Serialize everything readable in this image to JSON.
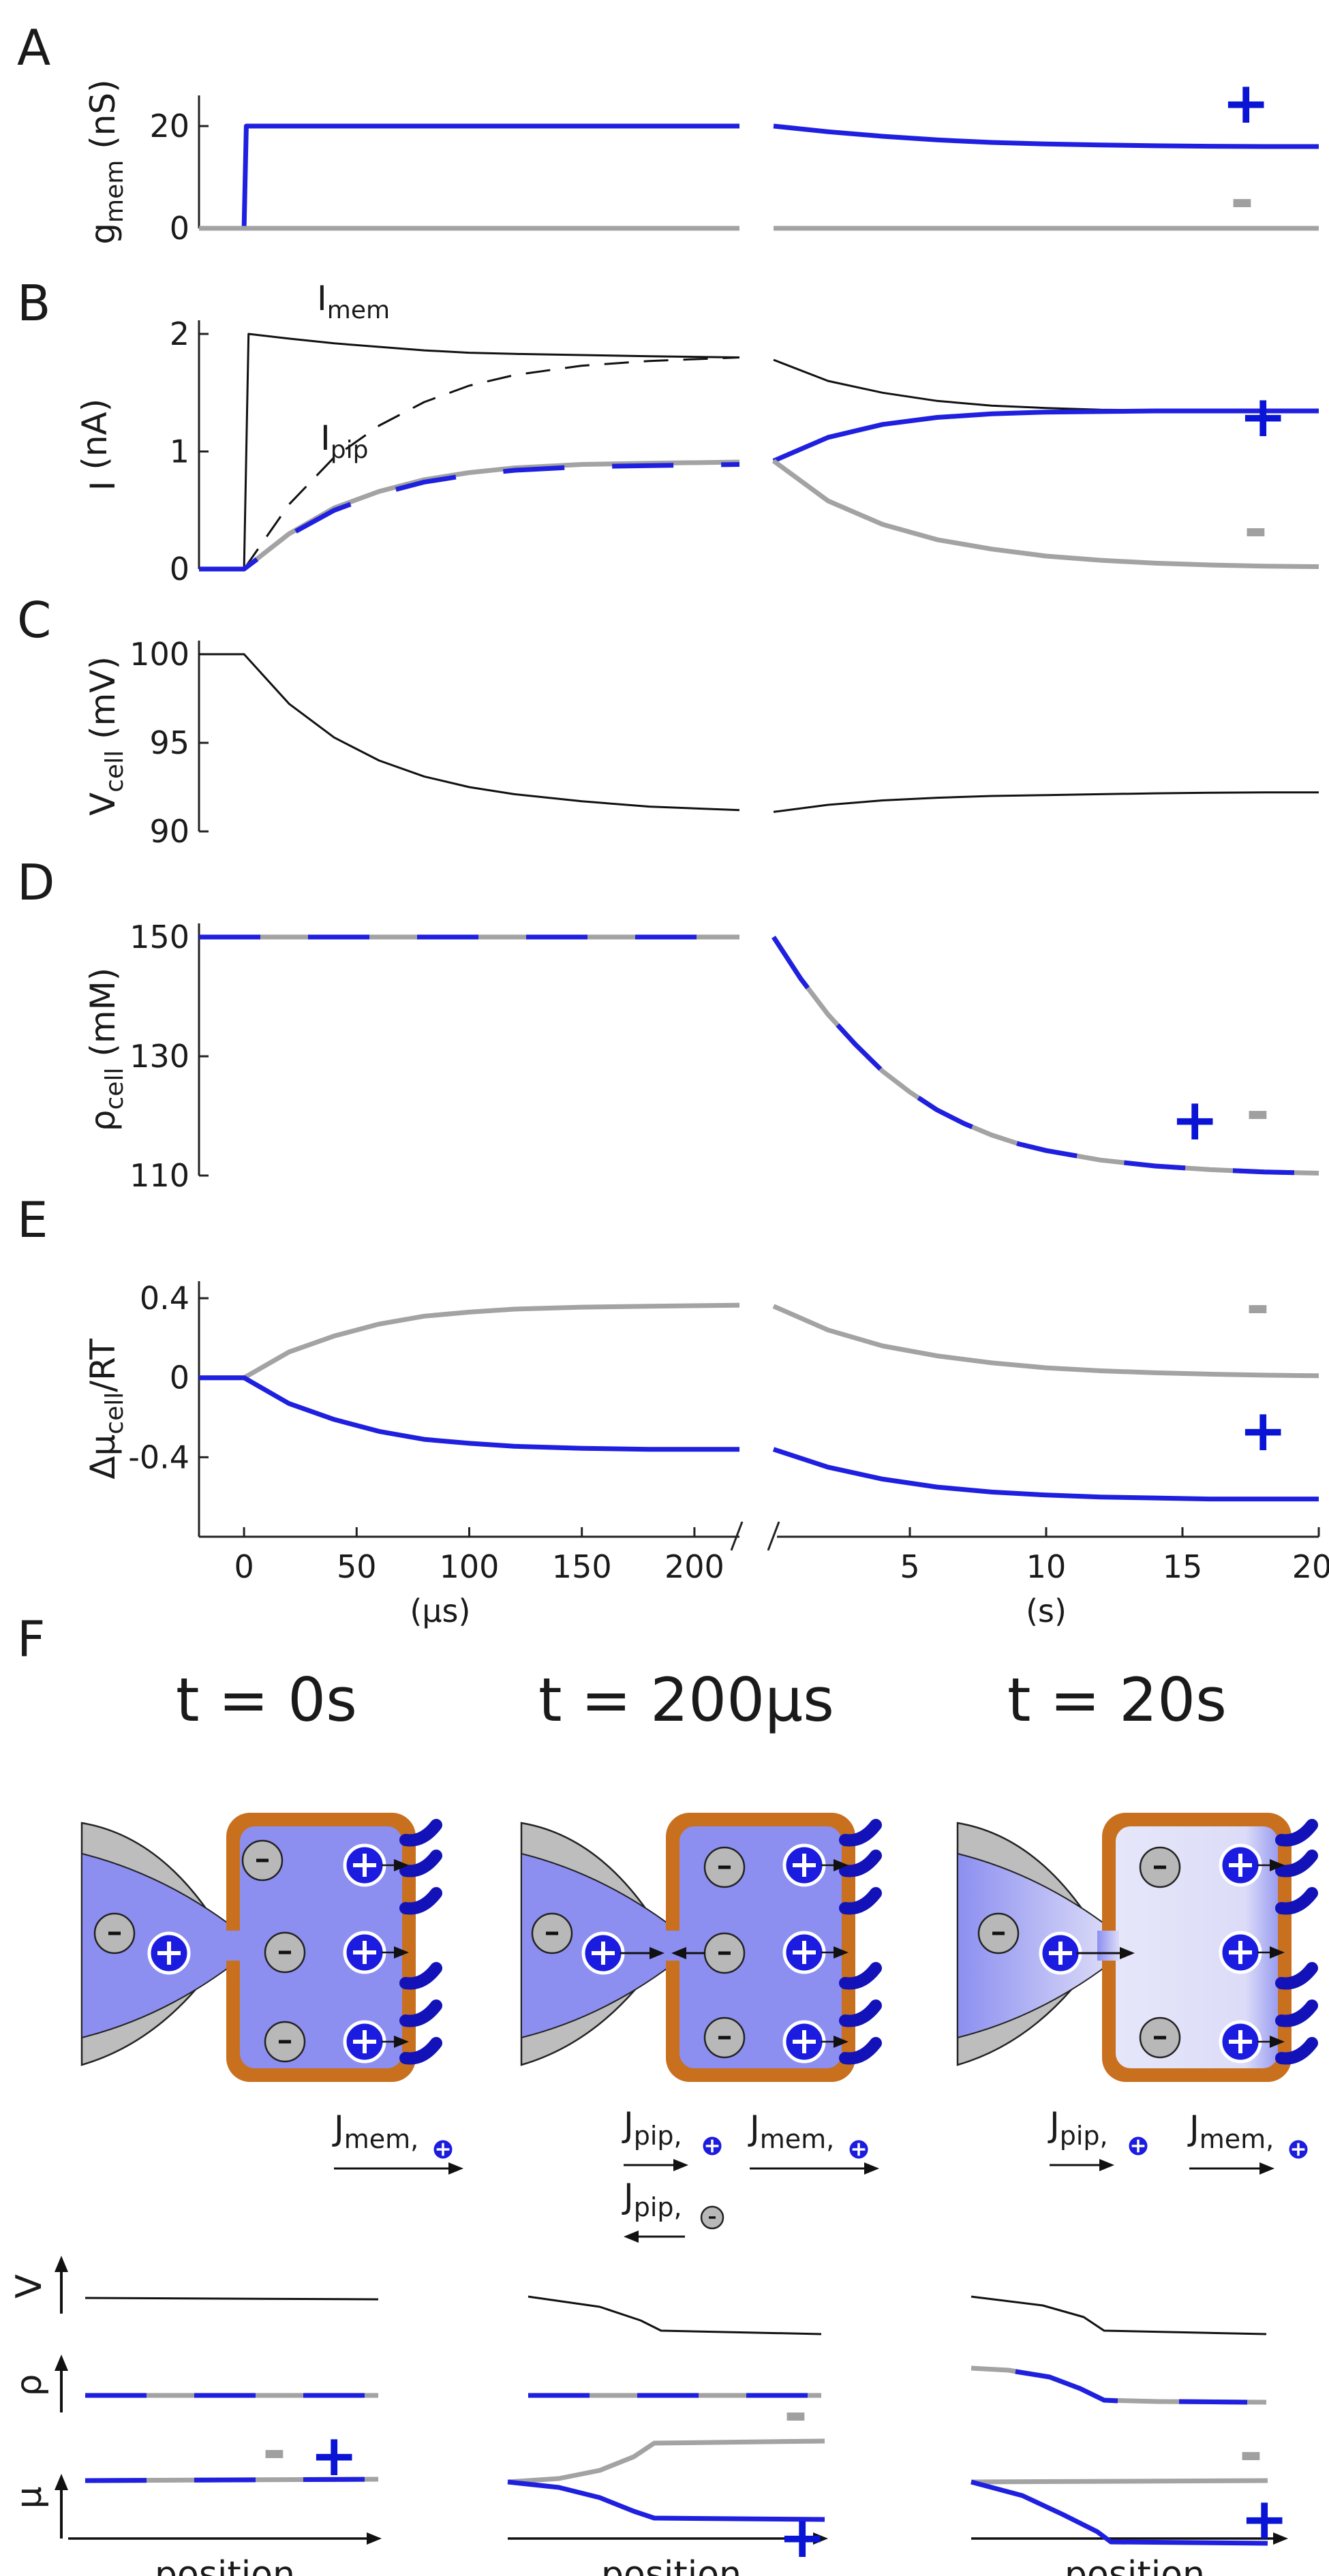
{
  "colors": {
    "positive": "#1f1fe0",
    "negative": "#a3a3a3",
    "black": "#111111",
    "cell_wall": "#c8701e",
    "blue_fill": "#8c8ff0",
    "pale_fill": "#dcdcf8",
    "pipette_gray": "#bdbdbd"
  },
  "panels": {
    "A": "A",
    "B": "B",
    "C": "C",
    "D": "D",
    "E": "E",
    "F": "F"
  },
  "signs": {
    "pos": "+",
    "neg": "-"
  },
  "x_axis": {
    "left_ticks": [
      "0",
      "50",
      "100",
      "150",
      "200"
    ],
    "left_unit": "(μs)",
    "right_ticks": [
      "5",
      "10",
      "15",
      "20"
    ],
    "right_unit": "(s)"
  },
  "chart_data": [
    {
      "panel": "A",
      "type": "line",
      "ylabel": "g",
      "ylabel_sub": "mem",
      "ylabel_unit": " (nS)",
      "yticks": [
        "0",
        "20"
      ],
      "ylim": [
        0,
        22
      ],
      "series": [
        {
          "color": "positive",
          "segment": "us",
          "x": [
            -20,
            0,
            1,
            220
          ],
          "y": [
            0,
            0,
            20,
            20
          ]
        },
        {
          "color": "negative",
          "segment": "us",
          "x": [
            -20,
            220
          ],
          "y": [
            0,
            0
          ]
        },
        {
          "color": "positive",
          "segment": "s",
          "x": [
            0,
            2,
            4,
            6,
            8,
            10,
            12,
            14,
            16,
            18,
            20
          ],
          "y": [
            20,
            18.9,
            18.0,
            17.3,
            16.8,
            16.5,
            16.3,
            16.15,
            16.05,
            16.0,
            16.0
          ]
        },
        {
          "color": "negative",
          "segment": "s",
          "x": [
            0,
            20
          ],
          "y": [
            0,
            0
          ]
        }
      ]
    },
    {
      "panel": "B",
      "type": "line",
      "ylabel": "I",
      "ylabel_sub": "",
      "ylabel_unit": " (nA)",
      "yticks": [
        "0",
        "1",
        "2"
      ],
      "ylim": [
        0,
        2
      ],
      "annotations": [
        {
          "text": "I",
          "sub": "mem"
        },
        {
          "text": "I",
          "sub": "pip"
        }
      ],
      "series": [
        {
          "color": "black",
          "segment": "us",
          "x": [
            -20,
            0,
            2,
            20,
            40,
            60,
            80,
            100,
            120,
            150,
            180,
            220
          ],
          "y": [
            0,
            0,
            2.0,
            1.96,
            1.92,
            1.89,
            1.86,
            1.84,
            1.83,
            1.82,
            1.81,
            1.8
          ]
        },
        {
          "color": "black",
          "dash": true,
          "segment": "us",
          "x": [
            0,
            20,
            40,
            60,
            80,
            100,
            120,
            150,
            180,
            220
          ],
          "y": [
            0,
            0.55,
            0.95,
            1.22,
            1.42,
            1.56,
            1.65,
            1.73,
            1.77,
            1.8
          ]
        },
        {
          "color": "negative",
          "segment": "us",
          "x": [
            -20,
            0,
            20,
            40,
            60,
            80,
            100,
            120,
            150,
            180,
            220
          ],
          "y": [
            0,
            0,
            0.3,
            0.52,
            0.66,
            0.76,
            0.82,
            0.86,
            0.89,
            0.9,
            0.91
          ]
        },
        {
          "color": "positive",
          "dash": true,
          "segment": "us",
          "x": [
            -20,
            0,
            20,
            40,
            60,
            80,
            100,
            120,
            150,
            180,
            220
          ],
          "y": [
            0,
            0,
            0.29,
            0.5,
            0.64,
            0.74,
            0.8,
            0.84,
            0.87,
            0.88,
            0.89
          ]
        },
        {
          "color": "black",
          "segment": "s",
          "x": [
            0,
            2,
            4,
            6,
            8,
            10,
            12,
            14,
            16,
            18,
            20
          ],
          "y": [
            1.78,
            1.6,
            1.5,
            1.43,
            1.39,
            1.37,
            1.355,
            1.35,
            1.345,
            1.345,
            1.345
          ]
        },
        {
          "color": "positive",
          "segment": "s",
          "x": [
            0,
            2,
            4,
            6,
            8,
            10,
            12,
            14,
            16,
            18,
            20
          ],
          "y": [
            0.92,
            1.12,
            1.23,
            1.29,
            1.32,
            1.335,
            1.34,
            1.345,
            1.345,
            1.345,
            1.345
          ]
        },
        {
          "color": "negative",
          "segment": "s",
          "x": [
            0,
            2,
            4,
            6,
            8,
            10,
            12,
            14,
            16,
            18,
            20
          ],
          "y": [
            0.92,
            0.58,
            0.38,
            0.25,
            0.17,
            0.11,
            0.075,
            0.05,
            0.035,
            0.025,
            0.02
          ]
        }
      ]
    },
    {
      "panel": "C",
      "type": "line",
      "ylabel": "V",
      "ylabel_sub": "cell",
      "ylabel_unit": " (mV)",
      "yticks": [
        "90",
        "95",
        "100"
      ],
      "ylim": [
        90,
        100
      ],
      "series": [
        {
          "color": "black",
          "segment": "us",
          "x": [
            -20,
            0,
            20,
            40,
            60,
            80,
            100,
            120,
            150,
            180,
            220
          ],
          "y": [
            100,
            100,
            97.2,
            95.3,
            94.0,
            93.1,
            92.5,
            92.1,
            91.7,
            91.4,
            91.2
          ]
        },
        {
          "color": "black",
          "segment": "s",
          "x": [
            0,
            2,
            4,
            6,
            8,
            10,
            12,
            14,
            16,
            18,
            20
          ],
          "y": [
            91.1,
            91.5,
            91.75,
            91.9,
            92.0,
            92.05,
            92.1,
            92.15,
            92.18,
            92.2,
            92.2
          ]
        }
      ]
    },
    {
      "panel": "D",
      "type": "line",
      "ylabel": "ρ",
      "ylabel_sub": "cell",
      "ylabel_unit": " (mM)",
      "yticks": [
        "110",
        "130",
        "150"
      ],
      "ylim": [
        110,
        150
      ],
      "series": [
        {
          "color": "negative",
          "segment": "us",
          "x": [
            -20,
            220
          ],
          "y": [
            150,
            150
          ]
        },
        {
          "color": "positive",
          "dash": true,
          "segment": "us",
          "x": [
            -20,
            220
          ],
          "y": [
            150,
            150
          ]
        },
        {
          "color": "negative",
          "segment": "s",
          "x": [
            0,
            1,
            2,
            3,
            4,
            5,
            6,
            7,
            8,
            9,
            10,
            12,
            14,
            16,
            18,
            20
          ],
          "y": [
            150,
            143,
            137,
            132,
            127.5,
            124,
            121,
            118.7,
            116.8,
            115.3,
            114.2,
            112.6,
            111.6,
            111.0,
            110.6,
            110.4
          ]
        },
        {
          "color": "positive",
          "dash": true,
          "segment": "s",
          "x": [
            0,
            1,
            2,
            3,
            4,
            5,
            6,
            7,
            8,
            9,
            10,
            12,
            14,
            16,
            18,
            20
          ],
          "y": [
            150,
            143,
            137,
            132,
            127.5,
            124,
            121,
            118.7,
            116.8,
            115.3,
            114.2,
            112.6,
            111.6,
            111.0,
            110.6,
            110.4
          ]
        }
      ]
    },
    {
      "panel": "E",
      "type": "line",
      "ylabel": "Δμ",
      "ylabel_sub": "cell",
      "ylabel_unit": "/RT",
      "yticks": [
        "-0.4",
        "0",
        "0.4"
      ],
      "ylim": [
        -0.8,
        0.4
      ],
      "series": [
        {
          "color": "negative",
          "segment": "us",
          "x": [
            -20,
            0,
            20,
            40,
            60,
            80,
            100,
            120,
            150,
            180,
            220
          ],
          "y": [
            0,
            0,
            0.13,
            0.21,
            0.27,
            0.31,
            0.33,
            0.345,
            0.355,
            0.36,
            0.365
          ]
        },
        {
          "color": "positive",
          "segment": "us",
          "x": [
            -20,
            0,
            20,
            40,
            60,
            80,
            100,
            120,
            150,
            180,
            220
          ],
          "y": [
            0,
            0,
            -0.13,
            -0.21,
            -0.27,
            -0.31,
            -0.33,
            -0.345,
            -0.355,
            -0.36,
            -0.36
          ]
        },
        {
          "color": "negative",
          "segment": "s",
          "x": [
            0,
            2,
            4,
            6,
            8,
            10,
            12,
            14,
            16,
            18,
            20
          ],
          "y": [
            0.36,
            0.24,
            0.16,
            0.11,
            0.075,
            0.05,
            0.035,
            0.025,
            0.018,
            0.013,
            0.01
          ]
        },
        {
          "color": "positive",
          "segment": "s",
          "x": [
            0,
            2,
            4,
            6,
            8,
            10,
            12,
            14,
            16,
            18,
            20
          ],
          "y": [
            -0.36,
            -0.45,
            -0.51,
            -0.55,
            -0.575,
            -0.59,
            -0.6,
            -0.605,
            -0.61,
            -0.61,
            -0.61
          ]
        }
      ]
    }
  ],
  "panel_F": {
    "time_titles": [
      "t = 0s",
      "t = 200μs",
      "t = 20s"
    ],
    "flux_labels": {
      "J": "J",
      "mem": "mem,",
      "pip": "pip,"
    },
    "row_labels": {
      "V": "V",
      "rho": "ρ",
      "mu": "μ"
    },
    "position_label": "position"
  }
}
